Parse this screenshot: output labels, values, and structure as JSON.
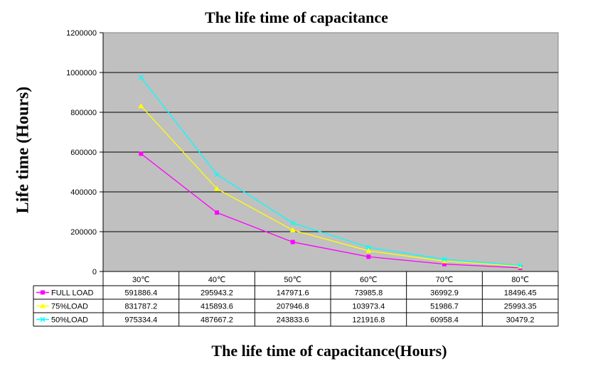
{
  "chart_data": {
    "type": "line",
    "title": "The life time of capacitance",
    "xlabel": "The life time of capacitance(Hours)",
    "ylabel": "Life  time (Hours)",
    "categories": [
      "30℃",
      "40℃",
      "50℃",
      "60℃",
      "70℃",
      "80℃"
    ],
    "ylim": [
      0,
      1200000
    ],
    "y_ticks": [
      "0",
      "200000",
      "400000",
      "600000",
      "800000",
      "1000000",
      "1200000"
    ],
    "grid": true,
    "legend": "data-table-left",
    "series": [
      {
        "name": "FULL LOAD",
        "color": "#ff00ff",
        "marker": "square",
        "values": [
          591886.4,
          295943.2,
          147971.6,
          73985.8,
          36992.9,
          18496.45
        ],
        "labels": [
          "591886.4",
          "295943.2",
          "147971.6",
          "73985.8",
          "36992.9",
          "18496.45"
        ]
      },
      {
        "name": "75%LOAD",
        "color": "#ffff00",
        "marker": "triangle",
        "values": [
          831787.2,
          415893.6,
          207946.8,
          103973.4,
          51986.7,
          25993.35
        ],
        "labels": [
          "831787.2",
          "415893.6",
          "207946.8",
          "103973.4",
          "51986.7",
          "25993.35"
        ]
      },
      {
        "name": "50%LOAD",
        "color": "#00ffff",
        "marker": "x",
        "values": [
          975334.4,
          487667.2,
          243833.6,
          121916.8,
          60958.4,
          30479.2
        ],
        "labels": [
          "975334.4",
          "487667.2",
          "243833.6",
          "121916.8",
          "60958.4",
          "30479.2"
        ]
      }
    ]
  }
}
